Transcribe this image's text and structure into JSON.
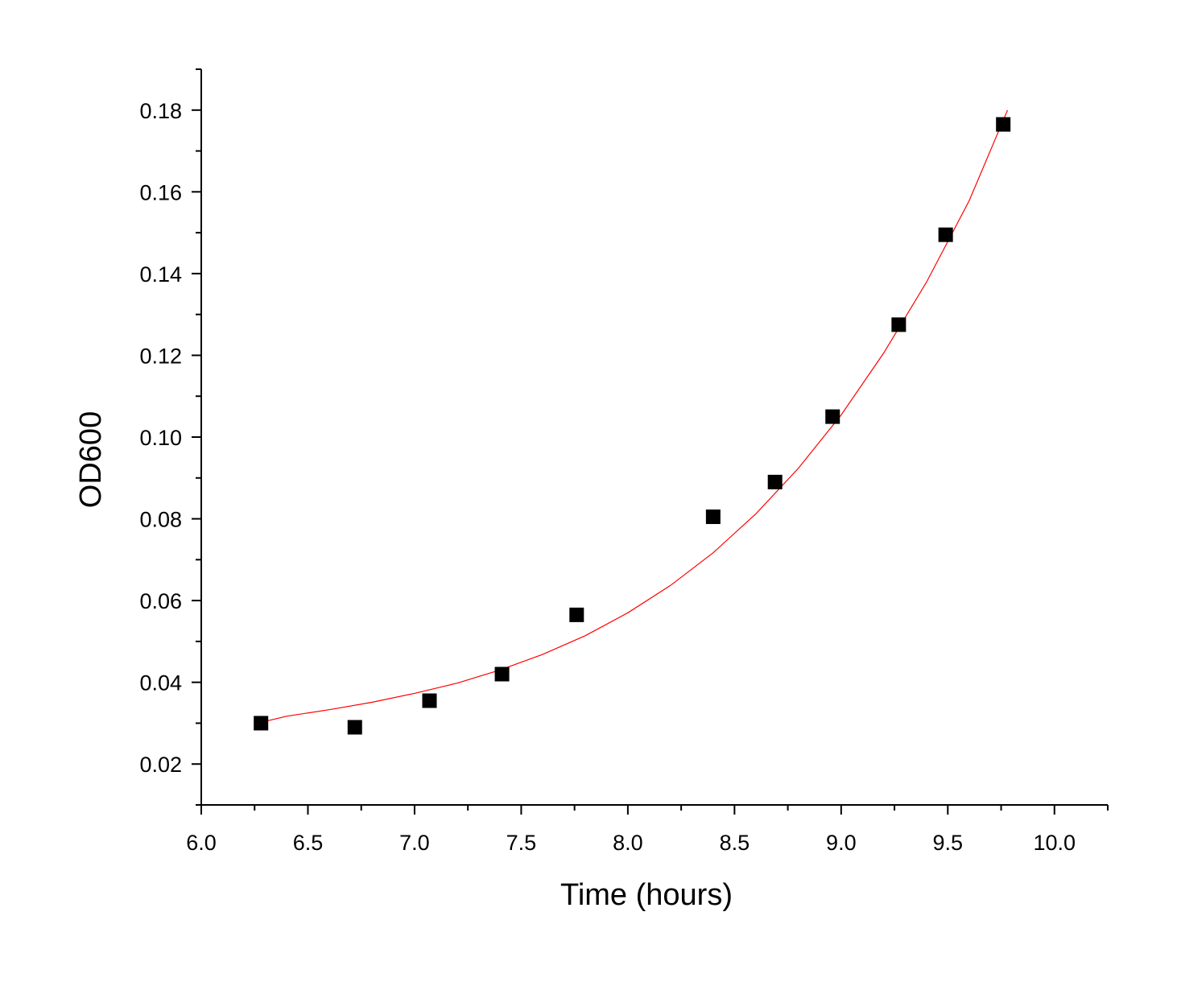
{
  "chart_data": {
    "type": "scatter",
    "title": "",
    "xlabel": "Time (hours)",
    "ylabel": "OD600",
    "xlim": [
      6.0,
      10.25
    ],
    "ylim": [
      0.01,
      0.19
    ],
    "x_ticks": [
      6.0,
      6.5,
      7.0,
      7.5,
      8.0,
      8.5,
      9.0,
      9.5,
      10.0
    ],
    "x_tick_labels": [
      "6.0",
      "6.5",
      "7.0",
      "7.5",
      "8.0",
      "8.5",
      "9.0",
      "9.5",
      "10.0"
    ],
    "y_ticks": [
      0.02,
      0.04,
      0.06,
      0.08,
      0.1,
      0.12,
      0.14,
      0.16,
      0.18
    ],
    "y_tick_labels": [
      "0.02",
      "0.04",
      "0.06",
      "0.08",
      "0.10",
      "0.12",
      "0.14",
      "0.16",
      "0.18"
    ],
    "grid": false,
    "legend": "none",
    "series": [
      {
        "marker": "square",
        "color": "#000000",
        "x": [
          6.28,
          6.72,
          7.07,
          7.41,
          7.76,
          8.4,
          8.69,
          8.96,
          9.27,
          9.49,
          9.76
        ],
        "y": [
          0.03,
          0.029,
          0.0355,
          0.042,
          0.0565,
          0.0805,
          0.089,
          0.105,
          0.1275,
          0.1495,
          0.1765
        ]
      }
    ],
    "fit": {
      "kind": "exponential",
      "color": "#ff0000",
      "x": [
        6.28,
        6.4,
        6.6,
        6.8,
        7.0,
        7.2,
        7.4,
        7.6,
        7.8,
        8.0,
        8.2,
        8.4,
        8.6,
        8.8,
        9.0,
        9.2,
        9.4,
        9.6,
        9.78
      ],
      "y": [
        0.0302,
        0.0317,
        0.0333,
        0.0351,
        0.0373,
        0.0398,
        0.043,
        0.0468,
        0.0514,
        0.057,
        0.0637,
        0.0717,
        0.0812,
        0.0924,
        0.1054,
        0.1206,
        0.1379,
        0.1578,
        0.18
      ]
    }
  }
}
